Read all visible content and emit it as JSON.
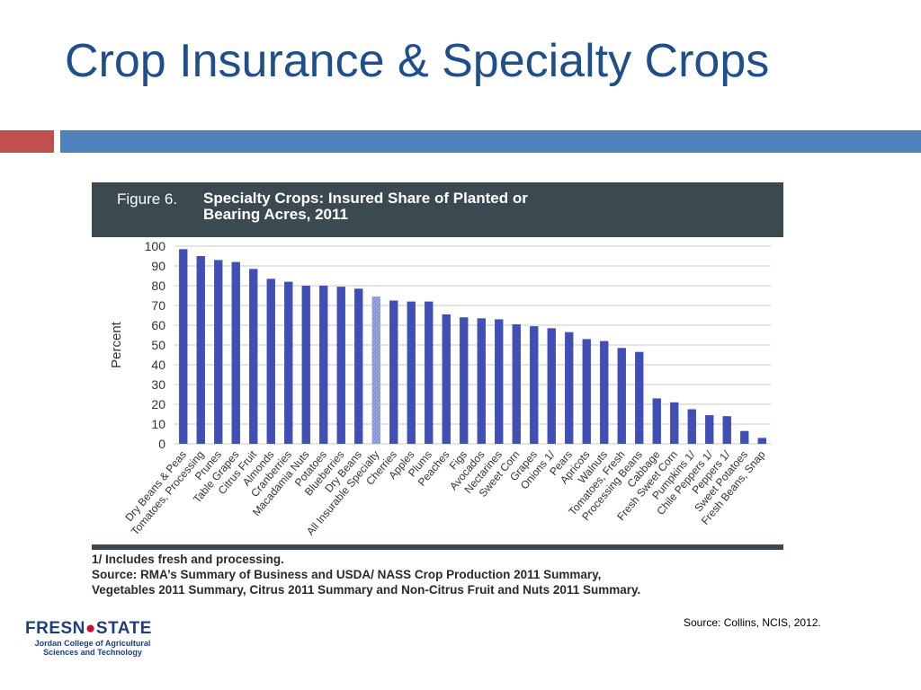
{
  "slide": {
    "title": "Crop Insurance & Specialty Crops",
    "accent_red": "#c0504d",
    "accent_blue": "#4f81bd",
    "source_note": "Source: Collins, NCIS, 2012."
  },
  "figure": {
    "number": "Figure 6.",
    "title_line1": "Specialty Crops: Insured Share of Planted or",
    "title_line2": "Bearing Acres, 2011",
    "header_color": "#3b4a50",
    "footnote1": "1/ Includes fresh and processing.",
    "footnote2": "Source: RMA’s Summary of Business and USDA/ NASS Crop Production 2011 Summary,",
    "footnote3": "Vegetables 2011 Summary, Citrus 2011 Summary and Non-Citrus Fruit and Nuts 2011 Summary."
  },
  "logo": {
    "main_part1": "FRESN",
    "main_part2": "STATE",
    "sub_line1": "Jordan College of Agricultural",
    "sub_line2": "Sciences and Technology"
  },
  "chart_data": {
    "type": "bar",
    "title": "Specialty Crops: Insured Share of Planted or Bearing Acres, 2011",
    "ylabel": "Percent",
    "xlabel": "",
    "ylim": [
      0,
      100
    ],
    "yticks": [
      0,
      10,
      20,
      30,
      40,
      50,
      60,
      70,
      80,
      90,
      100
    ],
    "grid": true,
    "bar_color": "#3f4fb5",
    "highlight_color": "#9aa4dd",
    "highlight_category": "All Insurable Specialty",
    "categories": [
      "Dry Beans & Peas",
      "Tomatoes, Processing",
      "Prunes",
      "Table Grapes",
      "Citrus Fruit",
      "Almonds",
      "Cranberries",
      "Macadamia Nuts",
      "Potatoes",
      "Blueberries",
      "Dry Beans",
      "All Insurable Specialty",
      "Cherries",
      "Apples",
      "Plums",
      "Peaches",
      "Figs",
      "Avocados",
      "Nectarines",
      "Sweet Corn",
      "Grapes",
      "Onions 1/",
      "Pears",
      "Apricots",
      "Walnuts",
      "Tomatoes, Fresh",
      "Processing Beans",
      "Cabbage",
      "Fresh Sweet Corn",
      "Pumpkins 1/",
      "Chile Peppers 1/",
      "Peppers 1/",
      "Sweet Potatoes",
      "Fresh Beans, Snap"
    ],
    "values": [
      98.5,
      95,
      93,
      92,
      88.5,
      83.5,
      82,
      80,
      80,
      79.5,
      78.5,
      74.5,
      72.5,
      72,
      72,
      65.5,
      64,
      63.5,
      63,
      60.5,
      59.5,
      58.5,
      56.5,
      53,
      52,
      48.5,
      46.5,
      23,
      21,
      17.5,
      14.5,
      14,
      6.5,
      3
    ]
  }
}
